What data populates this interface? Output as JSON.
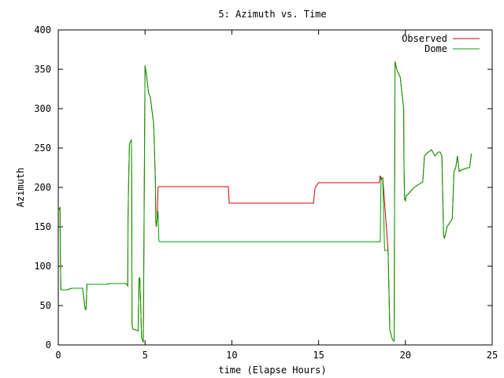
{
  "chart_data": {
    "type": "line",
    "title": "5: Azimuth vs. Time",
    "xlabel": "time (Elapse Hours)",
    "ylabel": "Azimuth",
    "xlim": [
      0,
      25
    ],
    "ylim": [
      0,
      400
    ],
    "x_ticks": [
      0,
      5,
      10,
      15,
      20,
      25
    ],
    "y_ticks": [
      0,
      50,
      100,
      150,
      200,
      250,
      300,
      350,
      400
    ],
    "legend_position": "top-right",
    "grid": false,
    "series": [
      {
        "name": "Observed",
        "color": "#cc0000",
        "x": [
          0,
          0.1,
          0.12,
          0.15,
          0.25,
          0.3,
          0.5,
          0.8,
          1.4,
          1.55,
          1.6,
          1.65,
          1.7,
          1.8,
          2.4,
          2.8,
          3.0,
          3.2,
          3.9,
          4.0,
          4.02,
          4.05,
          4.1,
          4.15,
          4.22,
          4.25,
          4.3,
          4.6,
          4.65,
          4.7,
          4.8,
          4.9,
          5.0,
          5.1,
          5.2,
          5.3,
          5.5,
          5.6,
          5.62,
          5.65,
          5.7,
          5.75,
          5.8,
          5.9,
          6.0,
          7.5,
          9.8,
          9.85,
          12.0,
          14.6,
          14.7,
          14.8,
          15.0,
          17.0,
          18.3,
          18.4,
          18.45,
          18.5,
          18.55,
          18.6,
          18.7,
          18.8,
          19.0,
          19.1,
          19.2,
          19.3,
          19.35,
          19.4,
          19.45,
          19.5,
          19.6,
          19.7,
          19.9,
          19.92,
          19.95,
          20.0,
          20.02,
          20.05,
          20.1,
          20.3,
          20.5,
          21.0,
          21.1,
          21.3,
          21.35,
          21.4,
          21.5,
          21.7,
          21.9,
          22.0,
          22.1,
          22.2,
          22.25,
          22.3,
          22.35,
          22.4,
          22.7,
          22.8,
          22.9,
          23.0,
          23.1,
          23.2,
          23.6,
          23.7,
          23.8
        ],
        "y": [
          170,
          175,
          115,
          70,
          70,
          70,
          70,
          72,
          72,
          45,
          45,
          77,
          77,
          77,
          77,
          77,
          78,
          78,
          78,
          75,
          160,
          205,
          255,
          258,
          260,
          25,
          20,
          18,
          85,
          85,
          10,
          3,
          355,
          340,
          320,
          315,
          280,
          205,
          155,
          150,
          160,
          200,
          201,
          201,
          201,
          201,
          201,
          180,
          180,
          180,
          180,
          200,
          206,
          206,
          206,
          206,
          206,
          206,
          215,
          210,
          212,
          180,
          120,
          20,
          10,
          5,
          5,
          360,
          355,
          350,
          345,
          340,
          300,
          225,
          185,
          183,
          185,
          190,
          190,
          195,
          200,
          207,
          240,
          245,
          245,
          246,
          248,
          240,
          245,
          245,
          240,
          140,
          135,
          140,
          145,
          150,
          160,
          220,
          225,
          240,
          220,
          222,
          225,
          225,
          243
        ]
      },
      {
        "name": "Dome",
        "color": "#00a000",
        "x": [
          0,
          0.1,
          0.12,
          0.15,
          0.25,
          0.3,
          0.5,
          0.8,
          1.4,
          1.55,
          1.6,
          1.65,
          1.7,
          1.8,
          2.4,
          2.8,
          3.0,
          3.2,
          3.9,
          4.0,
          4.02,
          4.05,
          4.1,
          4.15,
          4.22,
          4.25,
          4.3,
          4.6,
          4.65,
          4.7,
          4.8,
          4.9,
          5.0,
          5.1,
          5.2,
          5.3,
          5.5,
          5.6,
          5.62,
          5.65,
          5.7,
          5.75,
          5.8,
          5.85,
          7.5,
          9.8,
          12.0,
          14.6,
          17.0,
          18.3,
          18.4,
          18.45,
          18.5,
          18.55,
          18.6,
          18.7,
          18.8,
          19.0,
          19.1,
          19.2,
          19.3,
          19.35,
          19.4,
          19.45,
          19.5,
          19.6,
          19.7,
          19.9,
          19.92,
          19.95,
          20.0,
          20.02,
          20.05,
          20.1,
          20.3,
          20.5,
          21.0,
          21.1,
          21.3,
          21.35,
          21.4,
          21.5,
          21.7,
          21.9,
          22.0,
          22.1,
          22.2,
          22.25,
          22.3,
          22.35,
          22.4,
          22.7,
          22.8,
          22.9,
          23.0,
          23.1,
          23.2,
          23.6,
          23.7,
          23.8
        ],
        "y": [
          170,
          175,
          115,
          70,
          70,
          70,
          70,
          72,
          72,
          45,
          45,
          77,
          77,
          77,
          77,
          77,
          78,
          78,
          78,
          75,
          160,
          205,
          255,
          258,
          260,
          25,
          20,
          18,
          85,
          85,
          10,
          3,
          355,
          340,
          320,
          315,
          280,
          205,
          155,
          150,
          160,
          170,
          132,
          131,
          131,
          131,
          131,
          131,
          131,
          131,
          131,
          131,
          131,
          131,
          213,
          210,
          120,
          120,
          20,
          10,
          5,
          5,
          360,
          355,
          350,
          345,
          340,
          300,
          225,
          185,
          183,
          185,
          190,
          190,
          195,
          200,
          207,
          240,
          245,
          245,
          246,
          248,
          240,
          245,
          245,
          240,
          140,
          135,
          140,
          145,
          150,
          160,
          220,
          225,
          240,
          220,
          222,
          225,
          225,
          243
        ]
      }
    ]
  }
}
